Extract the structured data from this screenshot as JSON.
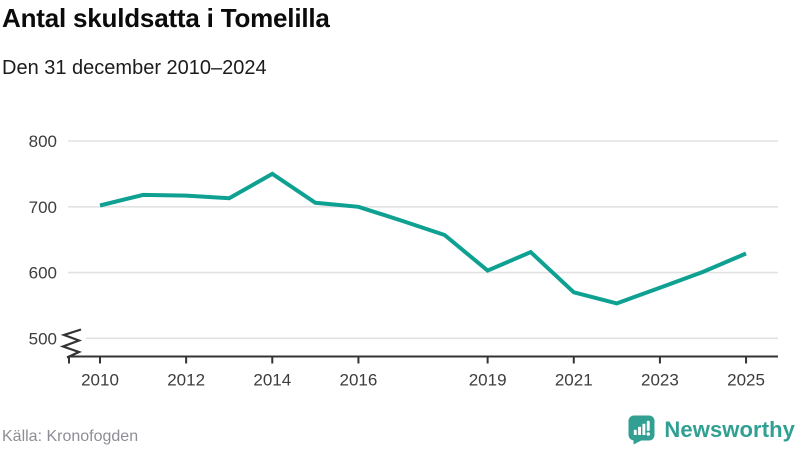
{
  "header": {
    "title": "Antal skuldsatta i Tomelilla",
    "subtitle": "Den 31 december 2010–2024"
  },
  "footer": {
    "source": "Källa: Kronofogden",
    "brand": "Newsworthy",
    "brand_icon": "bar-chart-speech-bubble-icon"
  },
  "colors": {
    "line": "#0ea192",
    "brand": "#31a093",
    "grid": "#e2e2e2",
    "axis": "#333333",
    "tick_text": "#3d3d3d",
    "title_text": "#0b0b0b",
    "muted_text": "#8d8d95",
    "background": "#ffffff"
  },
  "chart_data": {
    "type": "line",
    "title": "Antal skuldsatta i Tomelilla",
    "subtitle": "Den 31 december 2010–2024",
    "series_name": "Antal skuldsatta",
    "x": [
      2010,
      2011,
      2012,
      2013,
      2014,
      2015,
      2016,
      2017,
      2018,
      2019,
      2020,
      2021,
      2022,
      2023,
      2024,
      2025
    ],
    "values": [
      702,
      718,
      717,
      713,
      750,
      706,
      700,
      679,
      657,
      603,
      631,
      570,
      553,
      577,
      601,
      629
    ],
    "x_tick_labels": [
      2010,
      2012,
      2014,
      2016,
      2019,
      2021,
      2023,
      2025
    ],
    "y_ticks": [
      500,
      600,
      700,
      800
    ],
    "ylim": [
      500,
      800
    ],
    "xlim": [
      2009.3,
      2025.7
    ],
    "grid": "horizontal-only",
    "legend": "none",
    "axis_break_below": 500,
    "line_color": "#0ea192"
  }
}
